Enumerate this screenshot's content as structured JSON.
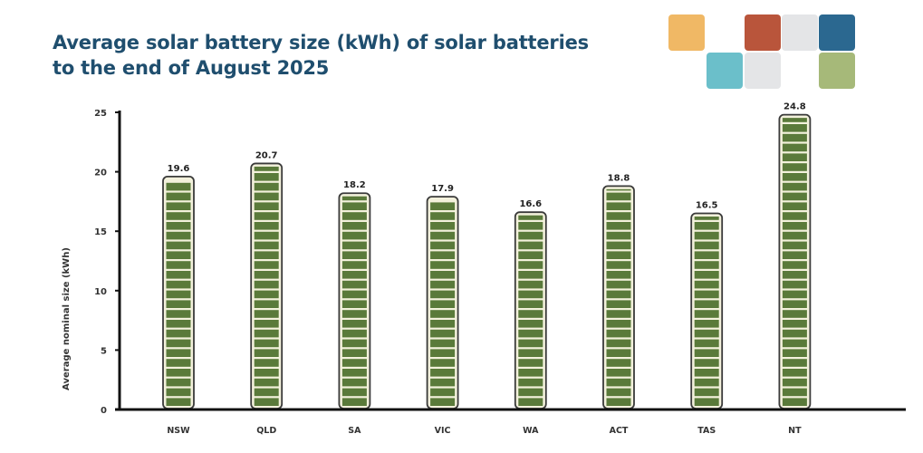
{
  "header": {
    "title_line1": "Average solar battery size (kWh) of solar batteries",
    "title_line2": "to the end of August 2025"
  },
  "logo": {
    "tiles": [
      {
        "name": "logo-tile-orange",
        "color": "#f0b865"
      },
      {
        "name": "logo-tile-red",
        "color": "#b9553b"
      },
      {
        "name": "logo-tile-grey-top",
        "color": "#e4e5e7"
      },
      {
        "name": "logo-tile-blue",
        "color": "#2b6890"
      },
      {
        "name": "logo-tile-teal",
        "color": "#6bbfca"
      },
      {
        "name": "logo-tile-grey-bottom",
        "color": "#e4e5e7"
      },
      {
        "name": "logo-tile-green",
        "color": "#a6b979"
      }
    ]
  },
  "chart_data": {
    "type": "bar",
    "title": "Average solar battery size (kWh) of solar batteries to the end of August 2025",
    "xlabel": "",
    "ylabel": "Average nominal size (kWh)",
    "categories": [
      "NSW",
      "QLD",
      "SA",
      "VIC",
      "WA",
      "ACT",
      "TAS",
      "NT"
    ],
    "values": [
      19.6,
      20.7,
      18.2,
      17.9,
      16.6,
      18.8,
      16.5,
      24.8
    ],
    "data_labels": [
      "19.6",
      "20.7",
      "18.2",
      "17.9",
      "16.6",
      "18.8",
      "16.5",
      "24.8"
    ],
    "ylim": [
      0,
      25
    ],
    "yticks": [
      0,
      5,
      10,
      15,
      20,
      25
    ],
    "grid": false,
    "legend": "none",
    "colors": {
      "bar_fill": "#5a7a3a",
      "bar_stripe": "#f3f1dc",
      "bar_outline": "#3a3a3a",
      "axis": "#111111"
    }
  }
}
